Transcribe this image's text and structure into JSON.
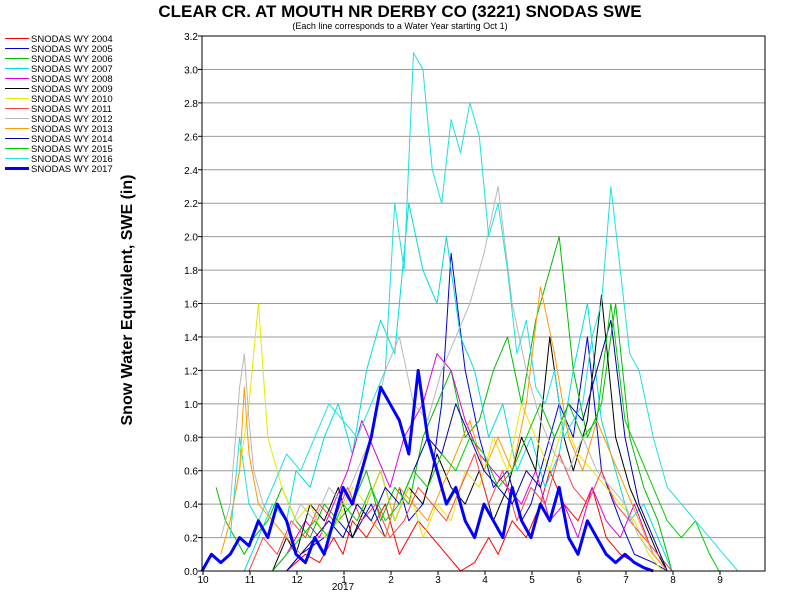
{
  "chart_data": {
    "type": "line",
    "title": "CLEAR CR. AT MOUTH NR DERBY CO (3221) SNODAS SWE",
    "subtitle": "(Each line corresponds to a Water Year starting Oct 1)",
    "ylabel": "Snow Water Equivalent, SWE (in)",
    "xlabel": "",
    "year_label": "2017",
    "ylim": [
      0,
      3.2
    ],
    "y_ticks": [
      "0.0",
      "0.2",
      "0.4",
      "0.6",
      "0.8",
      "1.0",
      "1.2",
      "1.4",
      "1.6",
      "1.8",
      "2.0",
      "2.2",
      "2.4",
      "2.6",
      "2.8",
      "3.0",
      "3.2"
    ],
    "x_ticks": [
      "10",
      "11",
      "12",
      "1",
      "2",
      "3",
      "4",
      "5",
      "6",
      "7",
      "8",
      "9"
    ],
    "grid": true,
    "legend_position": "left",
    "x_unit": "month index from Oct 1 (0 = Oct 1, 12 = next Oct 1)",
    "series": [
      {
        "name": "SNODAS WY 2004",
        "color": "#ff0000",
        "width": 1,
        "x": [
          1.8,
          2.2,
          2.5,
          2.8,
          3.0,
          3.2,
          3.5,
          3.9,
          4.2,
          4.6,
          4.9,
          5.2,
          5.5,
          5.8,
          6.1,
          6.3,
          6.6,
          6.9,
          7.2,
          7.4,
          7.7,
          8.0,
          8.3,
          8.6,
          8.9,
          9.2,
          9.5,
          10.0
        ],
        "y": [
          0,
          0.1,
          0.05,
          0.2,
          0.1,
          0.3,
          0.2,
          0.4,
          0.1,
          0.3,
          0.2,
          0.1,
          0,
          0.05,
          0.2,
          0.1,
          0.3,
          0.2,
          0.4,
          0.6,
          0.4,
          0.3,
          0.5,
          0.2,
          0.1,
          0.05,
          0,
          0
        ]
      },
      {
        "name": "SNODAS WY 2005",
        "color": "#0000dd",
        "width": 1,
        "x": [
          1.8,
          2.1,
          2.6,
          2.9,
          3.2,
          3.6,
          3.9,
          4.2,
          4.4,
          4.7,
          4.9,
          5.1,
          5.3,
          5.6,
          5.9,
          6.2,
          6.5,
          6.8,
          7.0,
          7.3,
          7.6,
          7.9,
          8.2,
          8.5,
          8.9,
          9.2,
          9.6,
          9.9
        ],
        "y": [
          0,
          0.1,
          0.2,
          0.3,
          0.2,
          0.4,
          0.2,
          0.5,
          0.3,
          0.4,
          0.6,
          1.0,
          1.9,
          1.2,
          0.8,
          0.5,
          0.6,
          0.3,
          0.4,
          0.7,
          1.0,
          0.8,
          1.4,
          0.6,
          0.3,
          0.1,
          0.05,
          0
        ]
      },
      {
        "name": "SNODAS WY 2006",
        "color": "#00bb00",
        "width": 1,
        "x": [
          0.3,
          0.5,
          0.7,
          0.9,
          1.1,
          1.4,
          1.7,
          2.0,
          2.3,
          2.6,
          2.9,
          3.2,
          3.5,
          3.8,
          4.1,
          4.4,
          4.7,
          5.0,
          5.3,
          5.6,
          5.9,
          6.2,
          6.5,
          6.8,
          7.1,
          7.3,
          7.6,
          7.9,
          8.2,
          8.5,
          8.8,
          9.1,
          9.4,
          9.7,
          10.0
        ],
        "y": [
          0.5,
          0.3,
          0.2,
          0.1,
          0.2,
          0.3,
          0.5,
          0.3,
          0.2,
          0.4,
          0.3,
          0.4,
          0.6,
          0.3,
          0.5,
          0.4,
          0.8,
          1.0,
          1.2,
          0.8,
          0.9,
          1.2,
          1.4,
          1.0,
          1.5,
          1.7,
          2.0,
          1.2,
          0.8,
          1.0,
          1.6,
          0.8,
          0.5,
          0.3,
          0
        ]
      },
      {
        "name": "SNODAS WY 2007",
        "color": "#00dddd",
        "width": 1,
        "x": [
          0.9,
          1.2,
          1.5,
          1.8,
          2.0,
          2.3,
          2.6,
          2.9,
          3.2,
          3.5,
          3.8,
          4.1,
          4.4,
          4.7,
          5.0,
          5.2,
          5.5,
          5.8,
          6.1,
          6.4,
          6.7,
          7.0,
          7.3,
          7.6,
          7.9,
          8.2,
          8.5,
          8.8,
          9.1,
          9.4,
          9.7,
          10.0
        ],
        "y": [
          0,
          0.2,
          0.4,
          0.3,
          0.6,
          0.5,
          0.8,
          1.0,
          0.7,
          1.2,
          1.5,
          1.3,
          2.2,
          1.8,
          1.6,
          2.0,
          1.4,
          1.2,
          0.8,
          1.0,
          0.6,
          0.8,
          0.5,
          0.7,
          1.2,
          1.6,
          0.9,
          0.6,
          0.3,
          0.4,
          0.2,
          0
        ]
      },
      {
        "name": "SNODAS WY 2008",
        "color": "#dd00dd",
        "width": 1,
        "x": [
          1.5,
          1.8,
          2.2,
          2.5,
          2.8,
          3.1,
          3.4,
          3.7,
          4.0,
          4.3,
          4.7,
          5.0,
          5.3,
          5.6,
          5.9,
          6.2,
          6.5,
          6.8,
          7.1,
          7.4,
          7.7,
          8.0,
          8.3,
          8.6,
          8.9,
          9.2,
          9.6,
          9.9
        ],
        "y": [
          0,
          0.1,
          0.3,
          0.2,
          0.4,
          0.6,
          0.9,
          0.7,
          0.5,
          0.8,
          1.0,
          1.3,
          1.2,
          0.9,
          0.7,
          0.6,
          0.5,
          0.4,
          0.6,
          0.3,
          0.4,
          0.2,
          0.5,
          0.3,
          0.2,
          0.4,
          0.1,
          0
        ]
      },
      {
        "name": "SNODAS WY 2009",
        "color": "#000000",
        "width": 1,
        "x": [
          1.5,
          1.8,
          2.0,
          2.3,
          2.6,
          2.9,
          3.2,
          3.5,
          3.8,
          4.1,
          4.4,
          4.7,
          5.0,
          5.3,
          5.6,
          5.9,
          6.2,
          6.5,
          6.8,
          7.1,
          7.4,
          7.7,
          7.9,
          8.2,
          8.5,
          8.8,
          9.1,
          9.4,
          9.7,
          9.9
        ],
        "y": [
          0,
          0.2,
          0.1,
          0.4,
          0.3,
          0.5,
          0.2,
          0.4,
          0.6,
          0.3,
          0.5,
          0.4,
          0.7,
          0.5,
          0.4,
          0.6,
          0.3,
          0.5,
          0.8,
          0.6,
          1.4,
          0.8,
          0.6,
          0.9,
          1.65,
          0.8,
          0.5,
          0.3,
          0.1,
          0
        ]
      },
      {
        "name": "SNODAS WY 2010",
        "color": "#e8e800",
        "width": 1,
        "x": [
          0.6,
          0.8,
          1.0,
          1.2,
          1.4,
          1.7,
          2.0,
          2.3,
          2.6,
          2.9,
          3.2,
          3.5,
          3.8,
          4.1,
          4.4,
          4.7,
          5.0,
          5.3,
          5.6,
          5.9,
          6.2,
          6.5,
          6.8,
          7.1,
          7.4,
          7.7,
          8.0,
          8.3,
          8.6,
          8.9,
          9.2,
          9.5,
          9.8
        ],
        "y": [
          0.3,
          0.6,
          1.0,
          1.6,
          0.8,
          0.5,
          0.3,
          0.4,
          0.2,
          0.3,
          0.5,
          0.4,
          0.6,
          0.3,
          0.5,
          0.2,
          0.4,
          0.3,
          0.6,
          0.5,
          0.8,
          0.6,
          1.0,
          0.8,
          0.6,
          0.9,
          0.7,
          0.6,
          0.5,
          0.4,
          0.3,
          0.1,
          0
        ]
      },
      {
        "name": "SNODAS WY 2011",
        "color": "#ff4040",
        "width": 1,
        "x": [
          1.0,
          1.3,
          1.6,
          1.9,
          2.2,
          2.5,
          2.8,
          3.1,
          3.4,
          3.7,
          4.0,
          4.3,
          4.6,
          4.9,
          5.2,
          5.5,
          5.8,
          6.1,
          6.4,
          6.7,
          7.0,
          7.3,
          7.6,
          7.9,
          8.2,
          8.5,
          8.8,
          9.1,
          9.4,
          9.7,
          10.0
        ],
        "y": [
          0,
          0.2,
          0.1,
          0.3,
          0.2,
          0.4,
          0.3,
          0.5,
          0.3,
          0.4,
          0.2,
          0.3,
          0.5,
          0.4,
          0.3,
          0.5,
          0.7,
          0.4,
          0.6,
          0.3,
          0.5,
          0.4,
          0.7,
          0.5,
          0.4,
          0.6,
          0.4,
          0.3,
          0.2,
          0.1,
          0
        ]
      },
      {
        "name": "SNODAS WY 2012",
        "color": "#b8b8b8",
        "width": 1,
        "x": [
          0.4,
          0.6,
          0.8,
          0.9,
          1.0,
          1.1,
          1.3,
          1.5,
          1.8,
          2.1,
          2.4,
          2.7,
          3.0,
          3.3,
          3.6,
          3.9,
          4.2,
          4.5,
          4.8,
          5.1,
          5.4,
          5.7,
          6.0,
          6.3,
          6.6,
          6.9,
          7.2,
          7.5,
          7.8,
          8.1,
          8.4,
          8.7,
          9.0,
          9.3,
          9.6,
          9.9
        ],
        "y": [
          0.2,
          0.4,
          1.1,
          1.3,
          0.9,
          0.6,
          0.4,
          0.3,
          0.2,
          0.4,
          0.3,
          0.5,
          0.4,
          0.6,
          0.8,
          1.2,
          1.4,
          1.0,
          0.9,
          1.2,
          1.4,
          1.6,
          1.9,
          2.3,
          1.6,
          1.2,
          0.9,
          0.7,
          0.6,
          0.8,
          0.6,
          0.5,
          0.4,
          0.2,
          0.1,
          0
        ]
      },
      {
        "name": "SNODAS WY 2013",
        "color": "#ff9900",
        "width": 1,
        "x": [
          0.4,
          0.6,
          0.8,
          0.9,
          1.0,
          1.2,
          1.5,
          1.8,
          2.1,
          2.4,
          2.7,
          3.0,
          3.3,
          3.6,
          3.9,
          4.2,
          4.5,
          4.8,
          5.1,
          5.4,
          5.7,
          6.0,
          6.3,
          6.6,
          6.9,
          7.2,
          7.5,
          7.8,
          8.1,
          8.4,
          8.7,
          9.0,
          9.3,
          9.6,
          9.9
        ],
        "y": [
          0.1,
          0.3,
          0.6,
          1.1,
          0.7,
          0.4,
          0.3,
          0.2,
          0.1,
          0.2,
          0.3,
          0.2,
          0.4,
          0.3,
          0.2,
          0.5,
          0.4,
          0.3,
          0.5,
          0.7,
          0.9,
          0.6,
          0.8,
          0.6,
          1.0,
          1.7,
          1.3,
          0.8,
          0.6,
          0.9,
          0.7,
          0.5,
          0.3,
          0.1,
          0
        ]
      },
      {
        "name": "SNODAS WY 2014",
        "color": "#0000aa",
        "width": 1,
        "x": [
          1.8,
          2.1,
          2.4,
          2.7,
          3.0,
          3.3,
          3.6,
          3.9,
          4.2,
          4.5,
          4.8,
          5.1,
          5.4,
          5.7,
          6.0,
          6.3,
          6.6,
          6.9,
          7.2,
          7.5,
          7.8,
          8.1,
          8.4,
          8.7,
          9.0,
          9.3,
          9.6,
          9.9
        ],
        "y": [
          0,
          0.1,
          0.2,
          0.3,
          0.2,
          0.4,
          0.3,
          0.5,
          0.4,
          0.6,
          0.8,
          0.7,
          1.0,
          0.8,
          0.6,
          0.5,
          0.4,
          0.6,
          0.5,
          0.8,
          1.0,
          0.9,
          1.2,
          1.5,
          0.8,
          0.4,
          0.2,
          0
        ]
      },
      {
        "name": "SNODAS WY 2015",
        "color": "#00cc00",
        "width": 1,
        "x": [
          1.5,
          1.8,
          2.1,
          2.4,
          2.7,
          3.0,
          3.3,
          3.6,
          3.9,
          4.2,
          4.5,
          4.8,
          5.1,
          5.4,
          5.7,
          6.0,
          6.3,
          6.6,
          6.9,
          7.2,
          7.5,
          7.8,
          8.1,
          8.4,
          8.7,
          9.0,
          9.3,
          9.6,
          9.9,
          10.2,
          10.5,
          10.8,
          11.0
        ],
        "y": [
          0,
          0.1,
          0.2,
          0.3,
          0.2,
          0.4,
          0.3,
          0.5,
          0.3,
          0.4,
          0.6,
          0.5,
          0.7,
          0.6,
          0.8,
          0.7,
          0.5,
          0.6,
          0.8,
          1.0,
          0.8,
          1.0,
          0.8,
          0.9,
          1.6,
          0.9,
          0.7,
          0.5,
          0.3,
          0.2,
          0.3,
          0.1,
          0
        ]
      },
      {
        "name": "SNODAS WY 2016",
        "color": "#20e0e0",
        "width": 1,
        "x": [
          0.6,
          0.8,
          1.0,
          1.2,
          1.5,
          1.8,
          2.1,
          2.4,
          2.7,
          3.0,
          3.3,
          3.6,
          3.9,
          4.1,
          4.3,
          4.5,
          4.7,
          4.9,
          5.1,
          5.3,
          5.5,
          5.7,
          5.9,
          6.1,
          6.3,
          6.5,
          6.7,
          6.9,
          7.1,
          7.3,
          7.5,
          7.7,
          7.9,
          8.1,
          8.3,
          8.5,
          8.7,
          8.9,
          9.1,
          9.3,
          9.6,
          9.9,
          10.2,
          10.5,
          10.8,
          11.1,
          11.4
        ],
        "y": [
          0.2,
          0.8,
          0.4,
          0.3,
          0.5,
          0.7,
          0.6,
          0.8,
          1.0,
          0.9,
          0.8,
          1.0,
          1.2,
          2.2,
          1.8,
          3.1,
          3.0,
          2.4,
          2.2,
          2.7,
          2.5,
          2.8,
          2.6,
          2.0,
          2.2,
          1.8,
          1.3,
          1.5,
          1.1,
          1.0,
          1.2,
          0.8,
          0.9,
          1.0,
          1.4,
          1.6,
          2.3,
          1.8,
          1.3,
          1.2,
          0.8,
          0.5,
          0.4,
          0.3,
          0.2,
          0.1,
          0
        ]
      },
      {
        "name": "SNODAS WY 2017",
        "color": "#0000ff",
        "width": 3,
        "x": [
          0.0,
          0.2,
          0.4,
          0.6,
          0.8,
          1.0,
          1.2,
          1.4,
          1.6,
          1.8,
          2.0,
          2.2,
          2.4,
          2.6,
          2.8,
          3.0,
          3.2,
          3.4,
          3.6,
          3.8,
          4.0,
          4.2,
          4.4,
          4.6,
          4.8,
          5.0,
          5.2,
          5.4,
          5.6,
          5.8,
          6.0,
          6.2,
          6.4,
          6.6,
          6.8,
          7.0,
          7.2,
          7.4,
          7.6,
          7.8,
          8.0,
          8.2,
          8.4,
          8.6,
          8.8,
          9.0,
          9.2,
          9.4,
          9.6
        ],
        "y": [
          0,
          0.1,
          0.05,
          0.1,
          0.2,
          0.15,
          0.3,
          0.2,
          0.4,
          0.3,
          0.1,
          0.05,
          0.2,
          0.1,
          0.3,
          0.5,
          0.4,
          0.6,
          0.8,
          1.1,
          1.0,
          0.9,
          0.7,
          1.2,
          0.8,
          0.6,
          0.4,
          0.5,
          0.3,
          0.2,
          0.4,
          0.3,
          0.2,
          0.5,
          0.3,
          0.2,
          0.4,
          0.3,
          0.5,
          0.2,
          0.1,
          0.3,
          0.2,
          0.1,
          0.05,
          0.1,
          0.05,
          0.02,
          0
        ]
      }
    ]
  }
}
